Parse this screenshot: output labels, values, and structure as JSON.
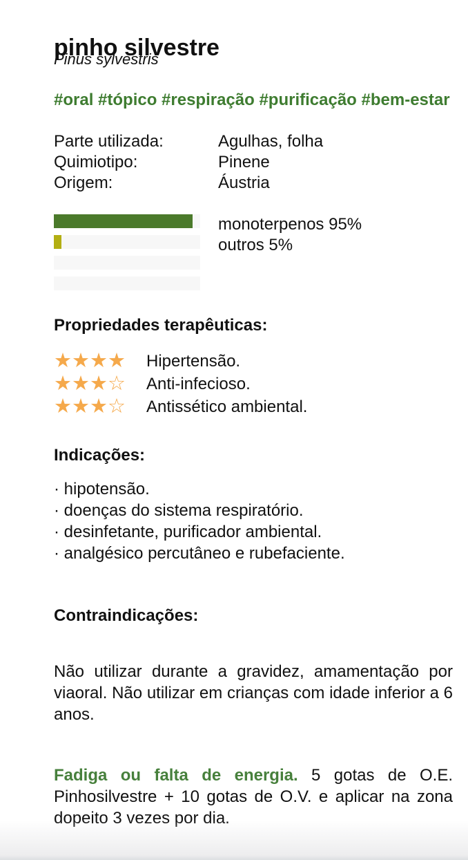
{
  "header": {
    "title": "pinho silvestre",
    "subtitle": "Pinus sylvestris",
    "hashtags": "#oral #tópico #respiração #purificação #bem-estar"
  },
  "details": {
    "rows": [
      {
        "label": "Parte utilizada:",
        "value": "Agulhas, folha"
      },
      {
        "label": "Quimiotipo:",
        "value": "Pinene"
      },
      {
        "label": "Origem:",
        "value": "Áustria"
      }
    ]
  },
  "chart_data": {
    "type": "bar",
    "orientation": "horizontal",
    "categories": [
      "monoterpenos",
      "outros"
    ],
    "values": [
      95,
      5
    ],
    "labels": [
      "monoterpenos 95%",
      "outros 5%"
    ],
    "colors": [
      "#4b7a2b",
      "#b3af13"
    ],
    "track_color": "#f7f7f7",
    "empty_tracks": 2,
    "xlim": [
      0,
      100
    ],
    "legend_position": "right"
  },
  "properties": {
    "heading": "Propriedades terapêuticas:",
    "star_color": "#f5a94b",
    "max_stars": 4,
    "items": [
      {
        "stars": 4,
        "label": "Hipertensão."
      },
      {
        "stars": 3,
        "label": "Anti-infecioso."
      },
      {
        "stars": 3,
        "label": "Antissético ambiental."
      }
    ]
  },
  "indications": {
    "heading": "Indicações:",
    "bullet": "·",
    "items": [
      "hipotensão.",
      "doenças do sistema respiratório.",
      "desinfetante, purificador ambiental.",
      "analgésico percutâneo e rubefaciente."
    ]
  },
  "contraindications": {
    "heading": "Contraindicações:",
    "text": "Não utilizar durante a gravidez, amamentação por viaoral. Não utilizar em crianças com idade inferior a 6 anos."
  },
  "usage": {
    "lead": "Fadiga ou falta de energia.",
    "lead_color": "#47803c",
    "text": "5 gotas de O.E. Pinhosilvestre + 10 gotas de O.V. e aplicar na zona dopeito 3 vezes por dia."
  },
  "colors": {
    "accent_green": "#3e7c30",
    "text": "#111111"
  }
}
